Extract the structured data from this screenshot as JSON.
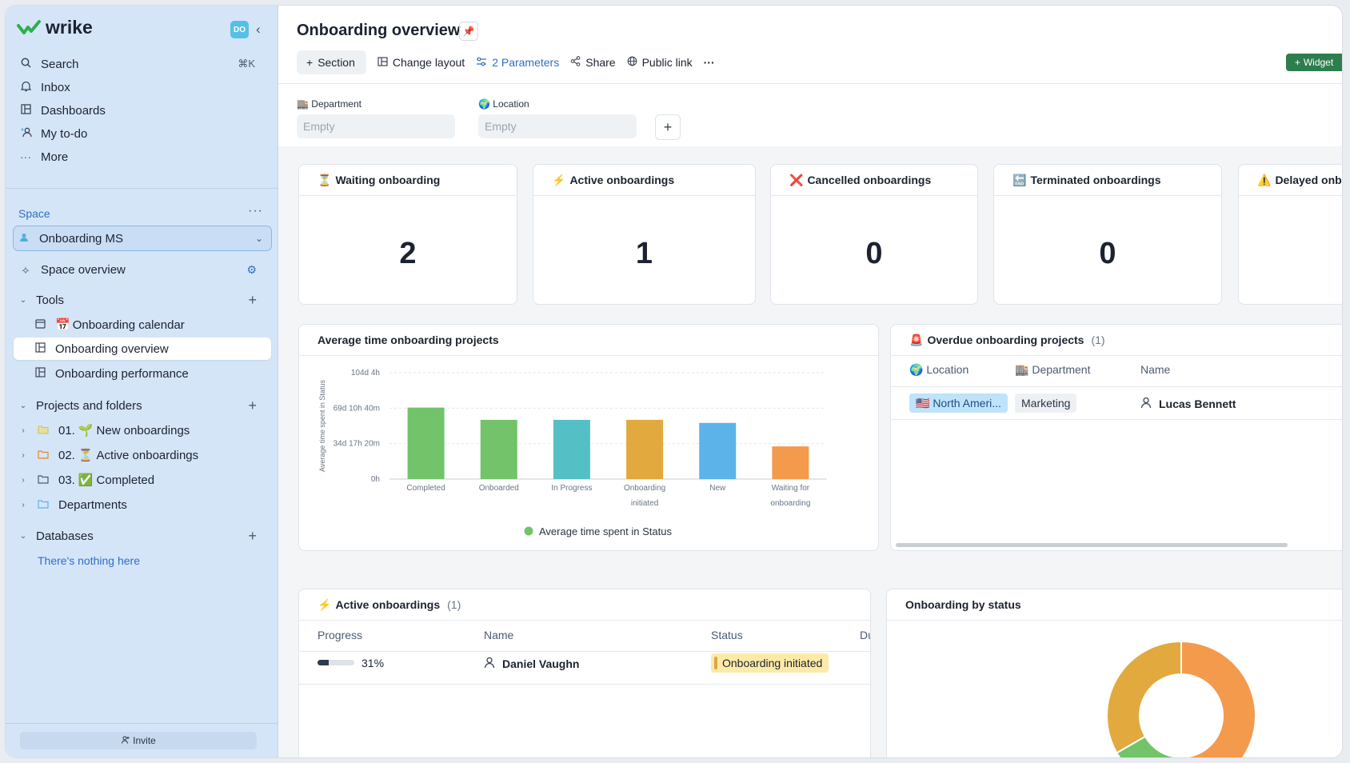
{
  "app": {
    "logo_text": "wrike",
    "avatar_initials": "DO"
  },
  "sidebar": {
    "nav": [
      {
        "label": "Search",
        "icon": "search-icon",
        "shortcut": "⌘K"
      },
      {
        "label": "Inbox",
        "icon": "bell-icon"
      },
      {
        "label": "Dashboards",
        "icon": "dashboard-icon"
      },
      {
        "label": "My to-do",
        "icon": "people-icon"
      },
      {
        "label": "More",
        "icon": "more-icon"
      }
    ],
    "space_label": "Space",
    "space_selected": "Onboarding MS",
    "space_overview": "Space overview",
    "tools_label": "Tools",
    "tools": [
      {
        "label": "Onboarding calendar",
        "emoji": "📅"
      },
      {
        "label": "Onboarding overview"
      },
      {
        "label": "Onboarding performance"
      }
    ],
    "projects_label": "Projects and folders",
    "folders": [
      {
        "prefix": "01.",
        "emoji": "🌱",
        "label": "New onboardings"
      },
      {
        "prefix": "02.",
        "emoji": "⏳",
        "label": "Active onboardings"
      },
      {
        "prefix": "03.",
        "emoji": "✅",
        "label": "Completed"
      },
      {
        "prefix": "",
        "emoji": "",
        "label": "Departments"
      }
    ],
    "databases_label": "Databases",
    "databases_empty": "There's nothing here",
    "invite_label": "Invite"
  },
  "header": {
    "title": "Onboarding overview",
    "toolbar": {
      "section": "Section",
      "change_layout": "Change layout",
      "parameters": "2 Parameters",
      "share": "Share",
      "public_link": "Public link",
      "more": "···",
      "widget": "Widget"
    }
  },
  "parameters": [
    {
      "emoji": "🏬",
      "label": "Department",
      "placeholder": "Empty"
    },
    {
      "emoji": "🌍",
      "label": "Location",
      "placeholder": "Empty"
    }
  ],
  "kpis": [
    {
      "emoji": "⏳",
      "title": "Waiting onboarding",
      "value": "2"
    },
    {
      "emoji": "⚡",
      "title": "Active onboardings",
      "value": "1"
    },
    {
      "emoji": "❌",
      "title": "Cancelled onboardings",
      "value": "0"
    },
    {
      "emoji": "🔚",
      "title": "Terminated onboardings",
      "value": "0"
    },
    {
      "emoji": "⚠️",
      "title": "Delayed onbo",
      "value": ""
    }
  ],
  "avg_chart": {
    "title": "Average time onboarding projects"
  },
  "chart_data": [
    {
      "type": "bar",
      "title": "Average time onboarding projects",
      "ylabel": "Average time spent in Status",
      "y_ticks": [
        "0h",
        "34d 17h 20m",
        "69d 10h 40m",
        "104d 4h"
      ],
      "ylim_days": [
        0,
        104.17
      ],
      "categories": [
        "Completed",
        "Onboarded",
        "In Progress",
        "Onboarding initiated",
        "New",
        "Waiting for onboarding"
      ],
      "values_days": [
        70,
        58,
        58,
        58,
        55,
        32
      ],
      "colors": [
        "#72c36a",
        "#72c36a",
        "#55bfc6",
        "#e2a93f",
        "#5cb3ea",
        "#f39a4d"
      ],
      "legend": "Average time spent in Status",
      "legend_color": "#72c36a"
    },
    {
      "type": "pie",
      "title": "Onboarding by status",
      "slices": [
        {
          "color": "#f39a4d",
          "value": 50
        },
        {
          "color": "#72c36a",
          "value": 16.7
        },
        {
          "color": "#e2a93f",
          "value": 33.3
        }
      ]
    }
  ],
  "overdue": {
    "emoji": "🚨",
    "title": "Overdue onboarding projects",
    "count": "(1)",
    "columns": [
      {
        "emoji": "🌍",
        "label": "Location"
      },
      {
        "emoji": "🏬",
        "label": "Department"
      },
      {
        "emoji": "",
        "label": "Name"
      }
    ],
    "rows": [
      {
        "location": "🇺🇸 North Ameri...",
        "department": "Marketing",
        "name": "Lucas Bennett"
      }
    ]
  },
  "active": {
    "emoji": "⚡",
    "title": "Active onboardings",
    "count": "(1)",
    "columns": [
      "Progress",
      "Name",
      "Status",
      "Du"
    ],
    "rows": [
      {
        "progress": 0.31,
        "progress_label": "31%",
        "name": "Daniel Vaughn",
        "status": "Onboarding initiated"
      }
    ]
  },
  "by_status": {
    "title": "Onboarding by status"
  }
}
